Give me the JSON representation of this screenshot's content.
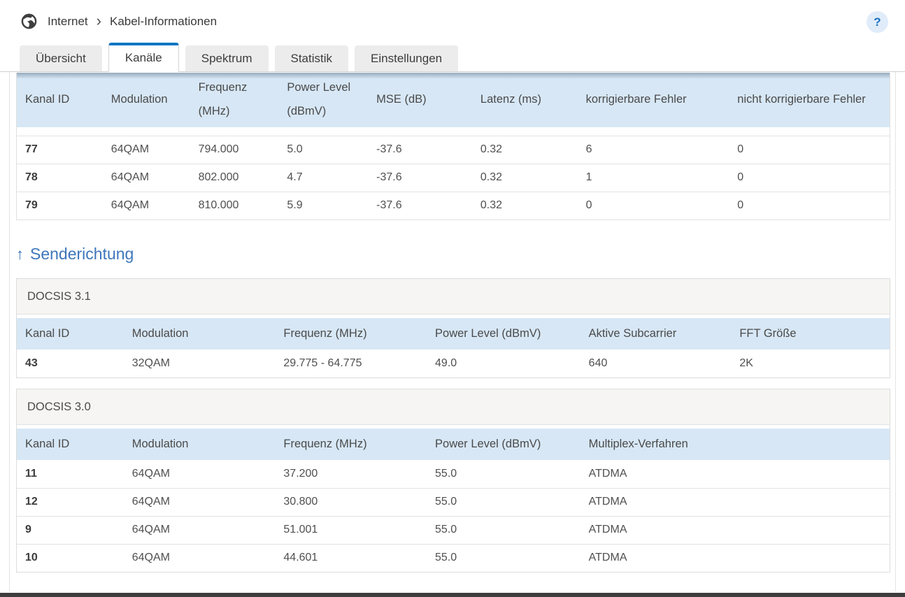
{
  "breadcrumb": {
    "items": [
      "Internet",
      "Kabel-Informationen"
    ],
    "separator": "›"
  },
  "help_label": "?",
  "tabs": [
    {
      "label": "Übersicht",
      "active": false
    },
    {
      "label": "Kanäle",
      "active": true
    },
    {
      "label": "Spektrum",
      "active": false
    },
    {
      "label": "Statistik",
      "active": false
    },
    {
      "label": "Einstellungen",
      "active": false
    }
  ],
  "downstream_table": {
    "columns": [
      "Kanal ID",
      "Modulation",
      "Frequenz (MHz)",
      "Power Level (dBmV)",
      "MSE (dB)",
      "Latenz (ms)",
      "korrigierbare Fehler",
      "nicht korrigierbare Fehler"
    ],
    "rows": [
      [
        "77",
        "64QAM",
        "794.000",
        "5.0",
        "-37.6",
        "0.32",
        "6",
        "0"
      ],
      [
        "78",
        "64QAM",
        "802.000",
        "4.7",
        "-37.6",
        "0.32",
        "1",
        "0"
      ],
      [
        "79",
        "64QAM",
        "810.000",
        "5.9",
        "-37.6",
        "0.32",
        "0",
        "0"
      ]
    ]
  },
  "upstream": {
    "arrow": "↑",
    "heading": "Senderichtung",
    "docsis31": {
      "title": "DOCSIS 3.1",
      "columns": [
        "Kanal ID",
        "Modulation",
        "Frequenz (MHz)",
        "Power Level (dBmV)",
        "Aktive Subcarrier",
        "FFT Größe"
      ],
      "rows": [
        [
          "43",
          "32QAM",
          "29.775 - 64.775",
          "49.0",
          "640",
          "2K"
        ]
      ]
    },
    "docsis30": {
      "title": "DOCSIS 3.0",
      "columns": [
        "Kanal ID",
        "Modulation",
        "Frequenz (MHz)",
        "Power Level (dBmV)",
        "Multiplex-Verfahren"
      ],
      "rows": [
        [
          "11",
          "64QAM",
          "37.200",
          "55.0",
          "ATDMA"
        ],
        [
          "12",
          "64QAM",
          "30.800",
          "55.0",
          "ATDMA"
        ],
        [
          "9",
          "64QAM",
          "51.001",
          "55.0",
          "ATDMA"
        ],
        [
          "10",
          "64QAM",
          "44.601",
          "55.0",
          "ATDMA"
        ]
      ]
    }
  },
  "colors": {
    "accent_blue": "#1176c3",
    "table_header_bg": "#d7e7f5",
    "section_title_bg": "#f6f5f3",
    "heading_blue": "#3e76bb",
    "help_button_bg": "#e1ecfa",
    "bottom_bar": "#3d3d3d"
  }
}
